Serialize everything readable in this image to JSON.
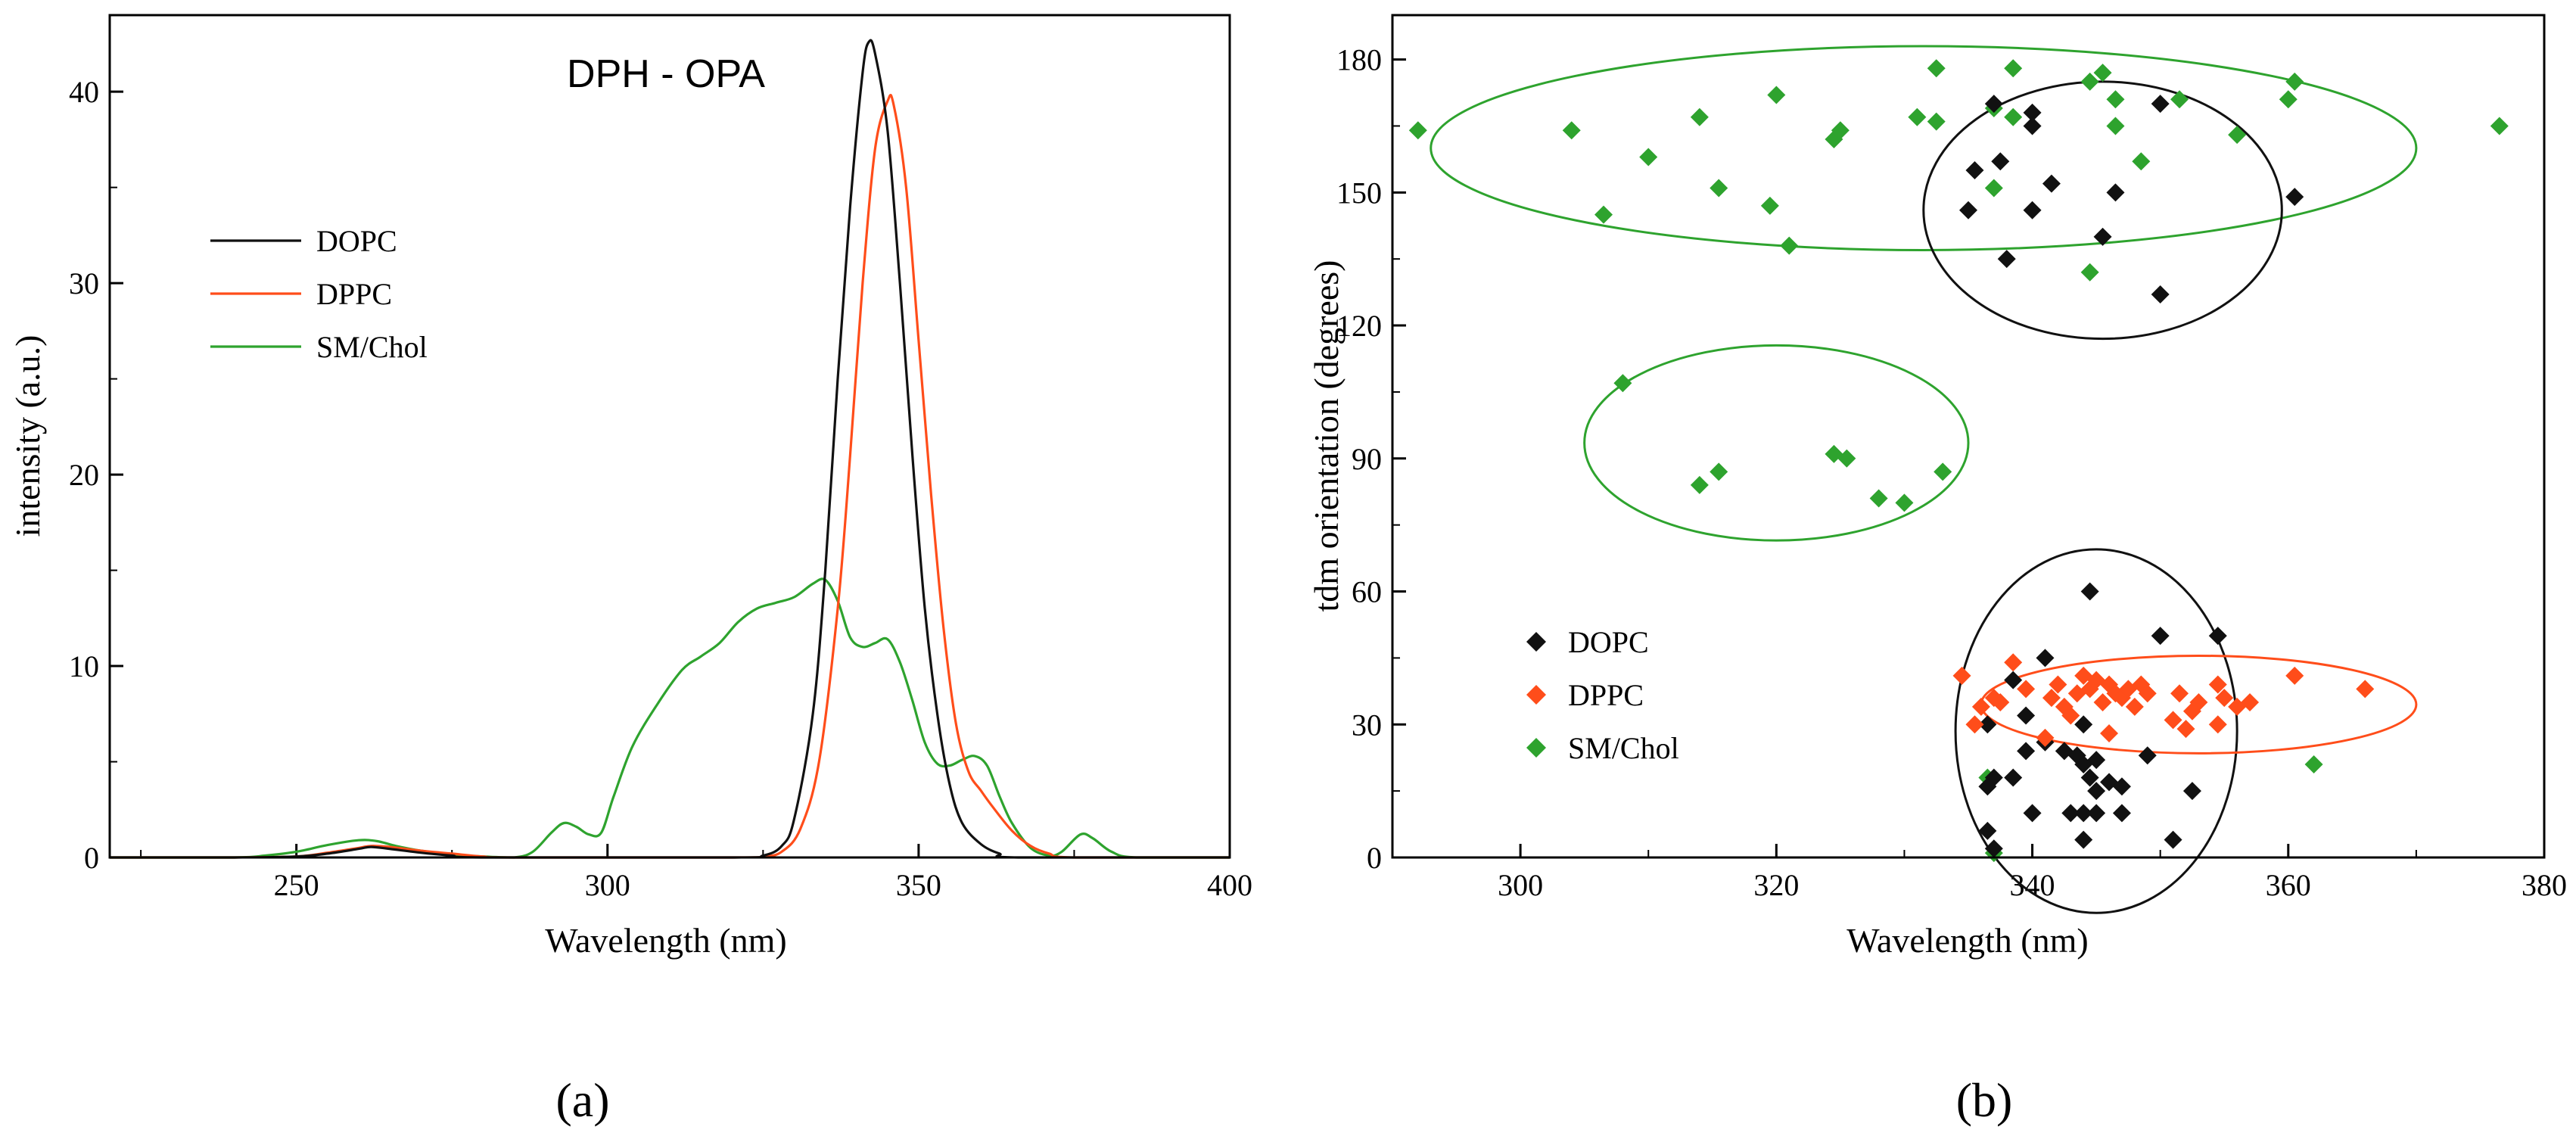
{
  "figure": {
    "caption_a": "(a)",
    "caption_b": "(b)"
  },
  "colors": {
    "DOPC": "#111111",
    "DPPC": "#ff4d1a",
    "SM/Chol": "#2ea32e"
  },
  "chart_data": [
    {
      "type": "line",
      "title": "DPH - OPA",
      "xlabel": "Wavelength (nm)",
      "ylabel": "intensity (a.u.)",
      "xlim": [
        220,
        400
      ],
      "ylim": [
        0,
        44
      ],
      "xticks": [
        250,
        300,
        350,
        400
      ],
      "yticks": [
        0,
        10,
        20,
        30,
        40
      ],
      "legend": "upper-left",
      "series": [
        {
          "name": "DOPC",
          "points": [
            [
              220,
              0
            ],
            [
              240,
              0
            ],
            [
              250,
              0.05
            ],
            [
              255,
              0.2
            ],
            [
              260,
              0.45
            ],
            [
              262,
              0.55
            ],
            [
              265,
              0.45
            ],
            [
              270,
              0.25
            ],
            [
              275,
              0.1
            ],
            [
              280,
              0
            ],
            [
              320,
              0
            ],
            [
              325,
              0.1
            ],
            [
              328,
              0.6
            ],
            [
              330,
              2
            ],
            [
              333,
              7.5
            ],
            [
              335,
              15
            ],
            [
              337,
              25
            ],
            [
              339,
              34
            ],
            [
              341,
              41
            ],
            [
              342,
              42.6
            ],
            [
              343,
              42
            ],
            [
              345,
              38
            ],
            [
              347,
              30
            ],
            [
              349,
              21
            ],
            [
              351,
              13
            ],
            [
              353,
              7.5
            ],
            [
              355,
              3.8
            ],
            [
              357,
              1.8
            ],
            [
              360,
              0.7
            ],
            [
              363,
              0.2
            ],
            [
              366,
              0
            ],
            [
              400,
              0
            ]
          ]
        },
        {
          "name": "DPPC",
          "points": [
            [
              220,
              0
            ],
            [
              240,
              0
            ],
            [
              250,
              0.05
            ],
            [
              255,
              0.25
            ],
            [
              260,
              0.5
            ],
            [
              262,
              0.6
            ],
            [
              265,
              0.55
            ],
            [
              270,
              0.35
            ],
            [
              275,
              0.2
            ],
            [
              280,
              0.05
            ],
            [
              285,
              0
            ],
            [
              320,
              0
            ],
            [
              325,
              0.05
            ],
            [
              328,
              0.3
            ],
            [
              331,
              1.5
            ],
            [
              334,
              5
            ],
            [
              337,
              13
            ],
            [
              339,
              21
            ],
            [
              341,
              30
            ],
            [
              343,
              37
            ],
            [
              345,
              39.5
            ],
            [
              346,
              39.3
            ],
            [
              348,
              35
            ],
            [
              350,
              27
            ],
            [
              352,
              19
            ],
            [
              354,
              12
            ],
            [
              356,
              7
            ],
            [
              358,
              4.5
            ],
            [
              360,
              3.5
            ],
            [
              362,
              2.6
            ],
            [
              365,
              1.4
            ],
            [
              368,
              0.6
            ],
            [
              371,
              0.2
            ],
            [
              375,
              0
            ],
            [
              400,
              0
            ]
          ]
        },
        {
          "name": "SM/Chol",
          "points": [
            [
              220,
              0
            ],
            [
              240,
              0
            ],
            [
              245,
              0.1
            ],
            [
              250,
              0.3
            ],
            [
              255,
              0.65
            ],
            [
              260,
              0.9
            ],
            [
              263,
              0.85
            ],
            [
              266,
              0.6
            ],
            [
              270,
              0.35
            ],
            [
              275,
              0.15
            ],
            [
              280,
              0.05
            ],
            [
              285,
              0
            ],
            [
              288,
              0.3
            ],
            [
              291,
              1.3
            ],
            [
              293,
              1.8
            ],
            [
              295,
              1.6
            ],
            [
              297,
              1.2
            ],
            [
              299,
              1.3
            ],
            [
              301,
              3.2
            ],
            [
              304,
              5.8
            ],
            [
              308,
              8
            ],
            [
              312,
              9.8
            ],
            [
              315,
              10.5
            ],
            [
              318,
              11.2
            ],
            [
              321,
              12.3
            ],
            [
              324,
              13
            ],
            [
              327,
              13.3
            ],
            [
              330,
              13.6
            ],
            [
              333,
              14.3
            ],
            [
              335,
              14.5
            ],
            [
              337,
              13.4
            ],
            [
              339,
              11.5
            ],
            [
              341,
              11
            ],
            [
              343,
              11.2
            ],
            [
              345,
              11.4
            ],
            [
              347,
              10.2
            ],
            [
              349,
              8.2
            ],
            [
              351,
              6
            ],
            [
              353,
              4.9
            ],
            [
              355,
              4.8
            ],
            [
              357,
              5.1
            ],
            [
              359,
              5.3
            ],
            [
              361,
              4.8
            ],
            [
              363,
              3.2
            ],
            [
              365,
              1.8
            ],
            [
              368,
              0.5
            ],
            [
              371,
              0.1
            ],
            [
              373,
              0.3
            ],
            [
              376,
              1.2
            ],
            [
              378,
              1
            ],
            [
              381,
              0.3
            ],
            [
              385,
              0
            ],
            [
              400,
              0
            ]
          ]
        }
      ]
    },
    {
      "type": "scatter",
      "title": "",
      "xlabel": "Wavelength (nm)",
      "ylabel": "tdm orientation (degrees)",
      "xlim": [
        290,
        380
      ],
      "ylim": [
        0,
        190
      ],
      "xticks": [
        300,
        320,
        340,
        360,
        380
      ],
      "yticks": [
        0,
        30,
        60,
        90,
        120,
        150,
        180
      ],
      "legend": "lower-left",
      "series": [
        {
          "name": "DOPC",
          "marker": "diamond",
          "points": [
            [
              344.5,
              60
            ],
            [
              350,
              50
            ],
            [
              354.5,
              50
            ],
            [
              341,
              45
            ],
            [
              338.5,
              40
            ],
            [
              336.5,
              30
            ],
            [
              339.5,
              32
            ],
            [
              344,
              30
            ],
            [
              341,
              26
            ],
            [
              339.5,
              24
            ],
            [
              342.5,
              24
            ],
            [
              343.5,
              23
            ],
            [
              345,
              22
            ],
            [
              349,
              23
            ],
            [
              344,
              21
            ],
            [
              337,
              18
            ],
            [
              338.5,
              18
            ],
            [
              344.5,
              18
            ],
            [
              346,
              17
            ],
            [
              336.5,
              16
            ],
            [
              347,
              16
            ],
            [
              345,
              15
            ],
            [
              352.5,
              15
            ],
            [
              343,
              10
            ],
            [
              344,
              10
            ],
            [
              345,
              10
            ],
            [
              347,
              10
            ],
            [
              340,
              10
            ],
            [
              336.5,
              6
            ],
            [
              344,
              4
            ],
            [
              351,
              4
            ],
            [
              337,
              2
            ],
            [
              335.5,
              155
            ],
            [
              337.5,
              157
            ],
            [
              340,
              168
            ],
            [
              340,
              165
            ],
            [
              337,
              170
            ],
            [
              341.5,
              152
            ],
            [
              335,
              146
            ],
            [
              340,
              146
            ],
            [
              346.5,
              150
            ],
            [
              345.5,
              140
            ],
            [
              338,
              135
            ],
            [
              350,
              170
            ],
            [
              350,
              127
            ],
            [
              360.5,
              149
            ]
          ]
        },
        {
          "name": "DPPC",
          "marker": "diamond",
          "points": [
            [
              334.5,
              41
            ],
            [
              335.5,
              30
            ],
            [
              336,
              34
            ],
            [
              337,
              36
            ],
            [
              337.5,
              35
            ],
            [
              338.5,
              44
            ],
            [
              339.5,
              38
            ],
            [
              341,
              27
            ],
            [
              341.5,
              36
            ],
            [
              342,
              39
            ],
            [
              342.5,
              34
            ],
            [
              343,
              32
            ],
            [
              343.5,
              37
            ],
            [
              344,
              41
            ],
            [
              344.5,
              38
            ],
            [
              345,
              40
            ],
            [
              345.5,
              35
            ],
            [
              346,
              39
            ],
            [
              346.5,
              37
            ],
            [
              347,
              36
            ],
            [
              347.5,
              38
            ],
            [
              348,
              34
            ],
            [
              348.5,
              39
            ],
            [
              349,
              37
            ],
            [
              351,
              31
            ],
            [
              351.5,
              37
            ],
            [
              352,
              29
            ],
            [
              352.5,
              33
            ],
            [
              353,
              35
            ],
            [
              354.5,
              30
            ],
            [
              354.5,
              39
            ],
            [
              355,
              36
            ],
            [
              356,
              34
            ],
            [
              357,
              35
            ],
            [
              346,
              28
            ],
            [
              360.5,
              41
            ],
            [
              366,
              38
            ]
          ]
        },
        {
          "name": "SM/Chol",
          "marker": "diamond",
          "points": [
            [
              292,
              164
            ],
            [
              304,
              164
            ],
            [
              306.5,
              145
            ],
            [
              310,
              158
            ],
            [
              314,
              167
            ],
            [
              315.5,
              151
            ],
            [
              319.5,
              147
            ],
            [
              320,
              172
            ],
            [
              321,
              138
            ],
            [
              324.5,
              162
            ],
            [
              325,
              164
            ],
            [
              331,
              167
            ],
            [
              332.5,
              166
            ],
            [
              332.5,
              178
            ],
            [
              337,
              169
            ],
            [
              338.5,
              178
            ],
            [
              338.5,
              167
            ],
            [
              337,
              151
            ],
            [
              344.5,
              132
            ],
            [
              344.5,
              175
            ],
            [
              345.5,
              177
            ],
            [
              346.5,
              171
            ],
            [
              346.5,
              165
            ],
            [
              348.5,
              157
            ],
            [
              351.5,
              171
            ],
            [
              356,
              163
            ],
            [
              360,
              171
            ],
            [
              360.5,
              175
            ],
            [
              376.5,
              165
            ],
            [
              308,
              107
            ],
            [
              314,
              84
            ],
            [
              315.5,
              87
            ],
            [
              324.5,
              91
            ],
            [
              325.5,
              90
            ],
            [
              328,
              81
            ],
            [
              330,
              80
            ],
            [
              333,
              87
            ],
            [
              336.5,
              18
            ],
            [
              337,
              1
            ],
            [
              362,
              21
            ]
          ]
        }
      ],
      "ellipses": [
        {
          "color": "SM/Chol",
          "center": [
            331.5,
            160
          ],
          "rx": 38.5,
          "ry": 23
        },
        {
          "color": "DOPC",
          "center": [
            345.5,
            146
          ],
          "rx": 14,
          "ry": 29
        },
        {
          "color": "SM/Chol",
          "center": [
            320,
            93.5
          ],
          "rx": 15,
          "ry": 22
        },
        {
          "color": "DOPC",
          "center": [
            345,
            28.5
          ],
          "rx": 11,
          "ry": 41
        },
        {
          "color": "DPPC",
          "center": [
            353,
            34.5
          ],
          "rx": 17,
          "ry": 11
        }
      ]
    }
  ]
}
